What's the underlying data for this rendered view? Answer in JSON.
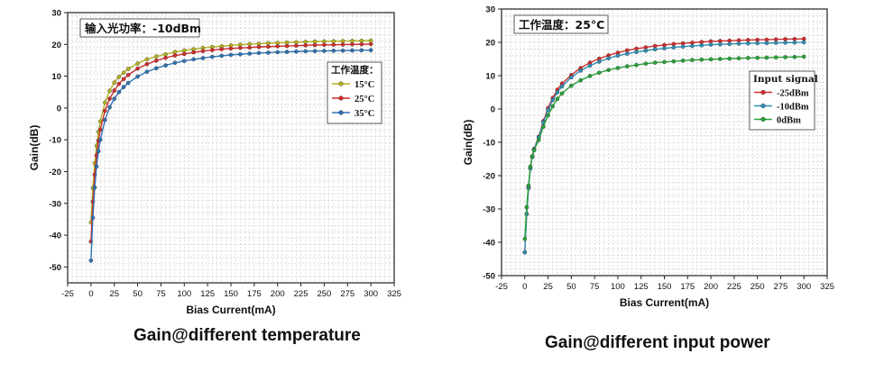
{
  "chart_data": [
    {
      "type": "line",
      "annotation": "输入光功率：-10dBm",
      "caption": "Gain@different temperature",
      "xlabel": "Bias Current(mA)",
      "ylabel": "Gain(dB)",
      "xlim": [
        -25,
        325
      ],
      "ylim": [
        -55,
        30
      ],
      "xticks": [
        -25,
        0,
        25,
        50,
        75,
        100,
        125,
        150,
        175,
        200,
        225,
        250,
        275,
        300,
        325
      ],
      "yticks": [
        -50,
        -40,
        -30,
        -20,
        -10,
        0,
        10,
        20,
        30
      ],
      "grid": true,
      "legend": {
        "title": "工作温度：",
        "placement": "upper-right-inside"
      },
      "x": [
        0,
        2,
        4,
        6,
        8,
        10,
        15,
        20,
        25,
        30,
        35,
        40,
        50,
        60,
        70,
        80,
        90,
        100,
        110,
        120,
        130,
        140,
        150,
        160,
        170,
        180,
        190,
        200,
        210,
        220,
        230,
        240,
        250,
        260,
        270,
        280,
        290,
        300
      ],
      "series": [
        {
          "name": "15°C",
          "color": "#b5b21f",
          "values": [
            -36,
            -25.2,
            -17.4,
            -11.9,
            -7.5,
            -4.2,
            1.7,
            5.4,
            8.0,
            9.8,
            11.1,
            12.3,
            14.0,
            15.3,
            16.2,
            16.9,
            17.6,
            18.1,
            18.5,
            18.9,
            19.2,
            19.4,
            19.7,
            19.9,
            20.1,
            20.2,
            20.4,
            20.5,
            20.6,
            20.7,
            20.8,
            20.9,
            20.95,
            21.0,
            21.05,
            21.1,
            21.15,
            21.2
          ]
        },
        {
          "name": "25°C",
          "color": "#d42c2c",
          "values": [
            -42,
            -29.5,
            -21.0,
            -14.9,
            -10.3,
            -6.8,
            -0.9,
            2.9,
            5.5,
            7.6,
            9.1,
            10.4,
            12.4,
            13.8,
            14.9,
            15.8,
            16.5,
            17.0,
            17.5,
            17.9,
            18.2,
            18.5,
            18.7,
            18.9,
            19.0,
            19.2,
            19.3,
            19.4,
            19.5,
            19.6,
            19.7,
            19.8,
            19.85,
            19.9,
            19.95,
            20.0,
            20.05,
            20.1
          ]
        },
        {
          "name": "35°C",
          "color": "#2f73b6",
          "values": [
            -48,
            -34.5,
            -25.0,
            -18.4,
            -13.6,
            -10.0,
            -3.8,
            0.2,
            2.9,
            5.0,
            6.6,
            7.9,
            9.9,
            11.4,
            12.5,
            13.4,
            14.2,
            14.8,
            15.3,
            15.7,
            16.1,
            16.4,
            16.7,
            16.9,
            17.1,
            17.3,
            17.4,
            17.55,
            17.65,
            17.75,
            17.85,
            17.9,
            17.95,
            18.0,
            18.05,
            18.1,
            18.15,
            18.2
          ]
        }
      ]
    },
    {
      "type": "line",
      "annotation": "工作温度：25°C",
      "caption": "Gain@different input power",
      "xlabel": "Bias Current(mA)",
      "ylabel": "Gain(dB)",
      "xlim": [
        -25,
        325
      ],
      "ylim": [
        -50,
        30
      ],
      "xticks": [
        -25,
        0,
        25,
        50,
        75,
        100,
        125,
        150,
        175,
        200,
        225,
        250,
        275,
        300,
        325
      ],
      "yticks": [
        -50,
        -40,
        -30,
        -20,
        -10,
        0,
        10,
        20,
        30
      ],
      "grid": true,
      "legend": {
        "title": "Input signal",
        "placement": "upper-right-inside"
      },
      "x": [
        0,
        2,
        4,
        6,
        8,
        10,
        15,
        20,
        25,
        30,
        35,
        40,
        50,
        60,
        70,
        80,
        90,
        100,
        110,
        120,
        130,
        140,
        150,
        160,
        170,
        180,
        190,
        200,
        210,
        220,
        230,
        240,
        250,
        260,
        270,
        280,
        290,
        300
      ],
      "series": [
        {
          "name": "-25dBm",
          "color": "#d42c2c",
          "values": [
            -43,
            -31.5,
            -23.5,
            -17.7,
            -14.2,
            -12.0,
            -8.3,
            -3.6,
            0.3,
            3.3,
            5.8,
            7.6,
            10.2,
            12.3,
            13.9,
            15.1,
            16.1,
            16.9,
            17.6,
            18.1,
            18.5,
            18.9,
            19.2,
            19.5,
            19.7,
            19.9,
            20.1,
            20.3,
            20.4,
            20.5,
            20.6,
            20.7,
            20.75,
            20.8,
            20.9,
            20.95,
            21.0,
            21.05
          ]
        },
        {
          "name": "-10dBm",
          "color": "#2f8fb6",
          "values": [
            -43,
            -31.5,
            -23.8,
            -17.9,
            -14.4,
            -12.2,
            -8.5,
            -4.0,
            -0.3,
            2.7,
            5.0,
            6.8,
            9.5,
            11.5,
            13.0,
            14.2,
            15.2,
            16.0,
            16.6,
            17.1,
            17.5,
            17.9,
            18.2,
            18.5,
            18.7,
            18.9,
            19.1,
            19.3,
            19.4,
            19.5,
            19.6,
            19.7,
            19.75,
            19.8,
            19.85,
            19.9,
            19.95,
            20.0
          ]
        },
        {
          "name": "0dBm",
          "color": "#27a337",
          "values": [
            -39,
            -29.5,
            -23.0,
            -17.3,
            -14.2,
            -12.4,
            -9.3,
            -5.3,
            -1.9,
            0.8,
            3.0,
            4.7,
            7.0,
            8.6,
            9.9,
            10.9,
            11.7,
            12.3,
            12.8,
            13.2,
            13.6,
            13.9,
            14.1,
            14.3,
            14.5,
            14.7,
            14.8,
            14.9,
            15.0,
            15.1,
            15.2,
            15.3,
            15.35,
            15.4,
            15.5,
            15.55,
            15.6,
            15.7
          ]
        }
      ]
    }
  ]
}
